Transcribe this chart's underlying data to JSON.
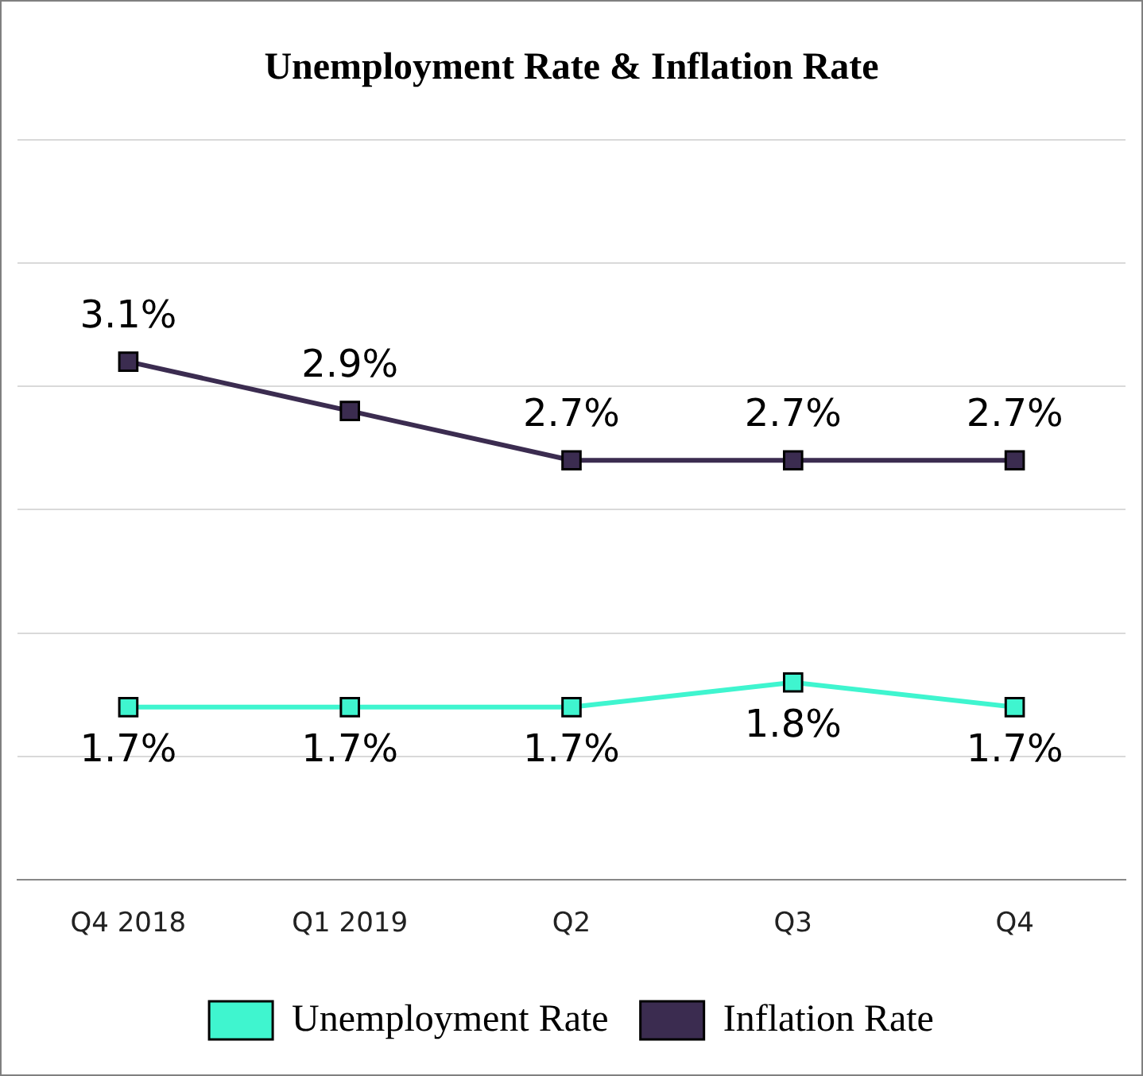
{
  "chart_data": {
    "type": "line",
    "title": "Unemployment Rate & Inflation Rate",
    "categories": [
      "Q4 2018",
      "Q1 2019",
      "Q2",
      "Q3",
      "Q4"
    ],
    "series": [
      {
        "name": "Unemployment Rate",
        "color": "#3ff5cf",
        "values": [
          1.7,
          1.7,
          1.7,
          1.8,
          1.7
        ],
        "value_labels": [
          "1.7%",
          "1.7%",
          "1.7%",
          "1.8%",
          "1.7%"
        ]
      },
      {
        "name": "Inflation Rate",
        "color": "#3b2c50",
        "values": [
          3.1,
          2.9,
          2.7,
          2.7,
          2.7
        ],
        "value_labels": [
          "3.1%",
          "2.9%",
          "2.7%",
          "2.7%",
          "2.7%"
        ]
      }
    ],
    "ylim": [
      1,
      4
    ],
    "yticks": [
      {
        "value": 1,
        "label": null
      },
      {
        "value": 1.5,
        "label": null
      },
      {
        "value": 2,
        "label": null
      },
      {
        "value": 2.5,
        "label": null
      },
      {
        "value": 3,
        "label": null
      },
      {
        "value": 3.5,
        "label": null
      },
      {
        "value": 4,
        "label": null
      }
    ],
    "tick_labels": "x",
    "grid": "y",
    "legend": "bottom",
    "marker": "square",
    "line_style": "solid"
  }
}
